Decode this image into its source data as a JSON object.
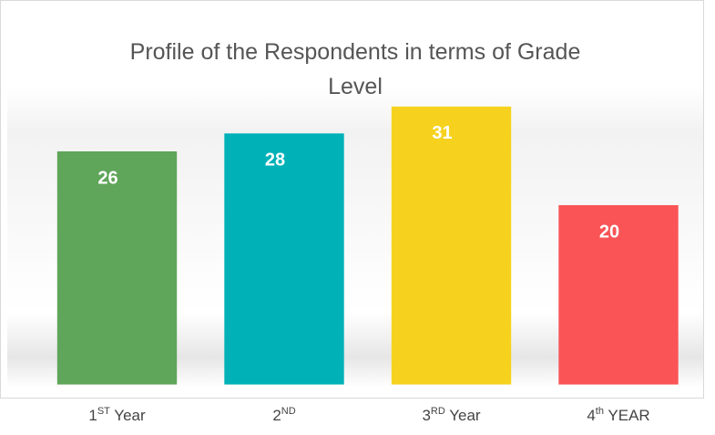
{
  "chart_data": {
    "type": "bar",
    "title": "Profile of the Respondents in terms of Grade Level",
    "categories": [
      "1ST Year",
      "2ND",
      "3RD Year",
      "4th YEAR"
    ],
    "values": [
      26,
      28,
      31,
      20
    ],
    "colors": [
      "#5fa55a",
      "#00b2b8",
      "#f6d21e",
      "#fa5456"
    ],
    "ylim": [
      0,
      35
    ],
    "grid": false
  }
}
